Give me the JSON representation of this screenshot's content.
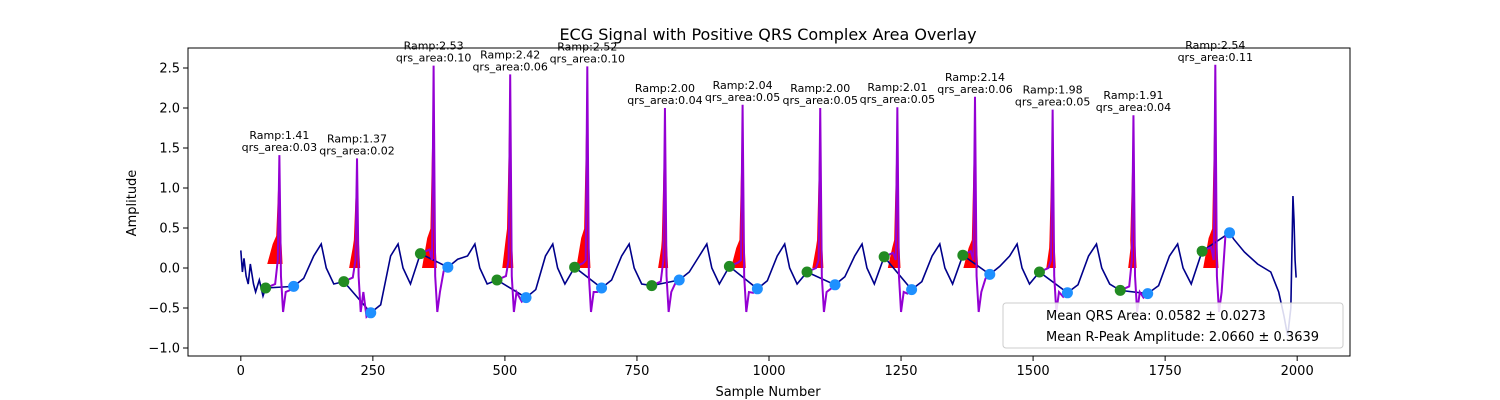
{
  "chart_data": {
    "type": "line",
    "title": "ECG Signal with Positive QRS Complex Area Overlay",
    "xlabel": "Sample Number",
    "ylabel": "Amplitude",
    "xlim": [
      -100,
      2100
    ],
    "ylim": [
      -1.1,
      2.75
    ],
    "xticks": [
      0,
      250,
      500,
      750,
      1000,
      1250,
      1500,
      1750,
      2000
    ],
    "xtick_labels": [
      "0",
      "250",
      "500",
      "750",
      "1000",
      "1250",
      "1500",
      "1750",
      "2000"
    ],
    "yticks": [
      -1.0,
      -0.5,
      0.0,
      0.5,
      1.0,
      1.5,
      2.0,
      2.5
    ],
    "ytick_labels": [
      "−1.0",
      "−0.5",
      "0.0",
      "0.5",
      "1.0",
      "1.5",
      "2.0",
      "2.5"
    ],
    "grid": false,
    "colors": {
      "signal": "#00008b",
      "qrs_segment": "#9400d3",
      "qrs_area": "#ff0000",
      "onset_marker": "#228b22",
      "offset_marker": "#1e90ff"
    },
    "beats": [
      {
        "r_x": 73,
        "ramp": 1.41,
        "qrs_area": 0.03,
        "onset": [
          47,
          -0.25
        ],
        "offset": [
          100,
          -0.23
        ],
        "area_start": 50,
        "area_level": 0.05
      },
      {
        "r_x": 220,
        "ramp": 1.37,
        "qrs_area": 0.02,
        "onset": [
          195,
          -0.17
        ],
        "offset": [
          246,
          -0.56
        ],
        "area_start": 205,
        "area_level": 0.0
      },
      {
        "r_x": 365,
        "ramp": 2.53,
        "qrs_area": 0.1,
        "onset": [
          340,
          0.18
        ],
        "offset": [
          392,
          0.01
        ],
        "area_start": 343,
        "area_level": 0.0
      },
      {
        "r_x": 510,
        "ramp": 2.42,
        "qrs_area": 0.06,
        "onset": [
          485,
          -0.15
        ],
        "offset": [
          540,
          -0.37
        ],
        "area_start": 495,
        "area_level": 0.0
      },
      {
        "r_x": 656,
        "ramp": 2.52,
        "qrs_area": 0.1,
        "onset": [
          632,
          0.01
        ],
        "offset": [
          683,
          -0.25
        ],
        "area_start": 635,
        "area_level": 0.0
      },
      {
        "r_x": 803,
        "ramp": 2.0,
        "qrs_area": 0.04,
        "onset": [
          778,
          -0.22
        ],
        "offset": [
          830,
          -0.15
        ],
        "area_start": 790,
        "area_level": 0.0
      },
      {
        "r_x": 950,
        "ramp": 2.04,
        "qrs_area": 0.05,
        "onset": [
          925,
          0.02
        ],
        "offset": [
          978,
          -0.26
        ],
        "area_start": 928,
        "area_level": 0.0
      },
      {
        "r_x": 1097,
        "ramp": 2.0,
        "qrs_area": 0.05,
        "onset": [
          1072,
          -0.05
        ],
        "offset": [
          1125,
          -0.21
        ],
        "area_start": 1082,
        "area_level": 0.0
      },
      {
        "r_x": 1243,
        "ramp": 2.01,
        "qrs_area": 0.05,
        "onset": [
          1218,
          0.14
        ],
        "offset": [
          1270,
          -0.27
        ],
        "area_start": 1225,
        "area_level": 0.0
      },
      {
        "r_x": 1390,
        "ramp": 2.14,
        "qrs_area": 0.06,
        "onset": [
          1367,
          0.16
        ],
        "offset": [
          1418,
          -0.08
        ],
        "area_start": 1368,
        "area_level": 0.0
      },
      {
        "r_x": 1537,
        "ramp": 1.98,
        "qrs_area": 0.05,
        "onset": [
          1512,
          -0.05
        ],
        "offset": [
          1565,
          -0.31
        ],
        "area_start": 1525,
        "area_level": 0.0
      },
      {
        "r_x": 1690,
        "ramp": 1.91,
        "qrs_area": 0.04,
        "onset": [
          1665,
          -0.28
        ],
        "offset": [
          1717,
          -0.32
        ],
        "area_start": 1680,
        "area_level": 0.0
      },
      {
        "r_x": 1845,
        "ramp": 2.54,
        "qrs_area": 0.11,
        "onset": [
          1820,
          0.21
        ],
        "offset": [
          1872,
          0.44
        ],
        "area_start": 1822,
        "area_level": 0.0
      }
    ],
    "trailing_signal": [
      [
        1880,
        0.36
      ],
      [
        1900,
        0.2
      ],
      [
        1925,
        0.05
      ],
      [
        1950,
        -0.05
      ],
      [
        1965,
        -0.3
      ],
      [
        1975,
        -0.6
      ],
      [
        1982,
        -0.85
      ],
      [
        1988,
        -0.5
      ],
      [
        1992,
        0.9
      ],
      [
        1994,
        0.6
      ],
      [
        1996,
        0.1
      ],
      [
        1998,
        -0.12
      ]
    ],
    "legend": [
      {
        "label": "Mean QRS Area: 0.0582 ± 0.0273"
      },
      {
        "label": "Mean R-Peak Amplitude: 2.0660 ± 0.3639"
      }
    ],
    "legend_position": "lower-right"
  }
}
